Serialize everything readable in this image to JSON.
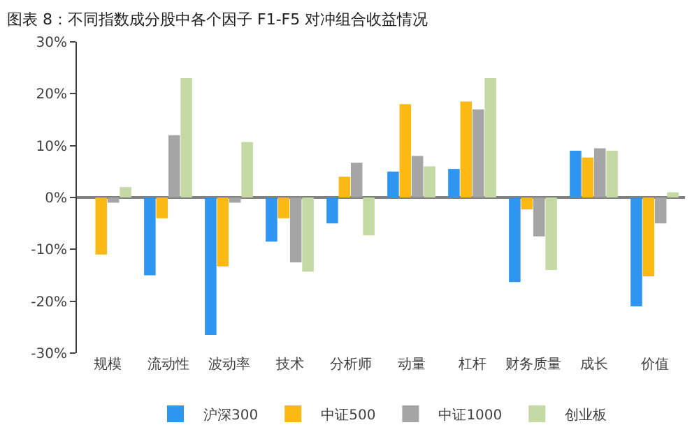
{
  "chart_data": {
    "type": "bar",
    "title": "图表 8：不同指数成分股中各个因子 F1-F5 对冲组合收益情况",
    "categories": [
      "规模",
      "流动性",
      "波动率",
      "技术",
      "分析师",
      "动量",
      "杠杆",
      "财务质量",
      "成长",
      "价值"
    ],
    "series": [
      {
        "name": "沪深300",
        "color": "#2e95f0",
        "values": [
          0,
          -15,
          -26.5,
          -8.5,
          -5,
          5,
          5.5,
          -16.3,
          9,
          -21
        ]
      },
      {
        "name": "中证500",
        "color": "#fdb913",
        "values": [
          -11,
          -4,
          -13.3,
          -4,
          4,
          18,
          18.5,
          -2.3,
          7.7,
          -15.2
        ]
      },
      {
        "name": "中证1000",
        "color": "#a5a5a5",
        "values": [
          -1,
          12,
          -1,
          -12.5,
          6.7,
          8,
          17,
          -7.5,
          9.5,
          -5
        ]
      },
      {
        "name": "创业板",
        "color": "#c5d9a5",
        "values": [
          2,
          23,
          10.7,
          -14.3,
          -7.3,
          6,
          23,
          -14,
          9,
          1
        ]
      }
    ],
    "ylim": [
      -30,
      30
    ],
    "yticks": [
      {
        "value": -30,
        "label": "-30%"
      },
      {
        "value": -20,
        "label": "-20%"
      },
      {
        "value": -10,
        "label": "-10%"
      },
      {
        "value": 0,
        "label": "0%"
      },
      {
        "value": 10,
        "label": "10%"
      },
      {
        "value": 20,
        "label": "20%"
      },
      {
        "value": 30,
        "label": "30%"
      }
    ],
    "legend": "bottom"
  }
}
